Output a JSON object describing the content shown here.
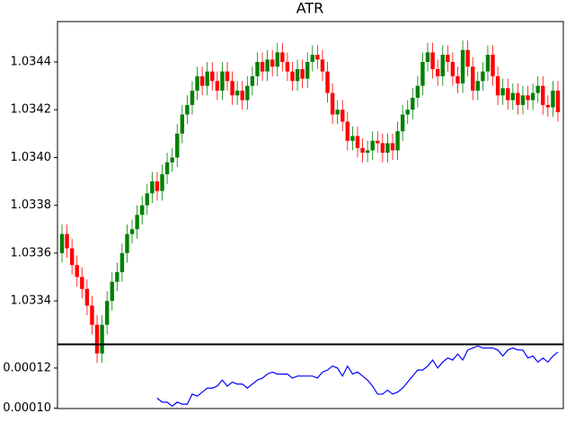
{
  "chart_data": [
    {
      "type": "candlestick",
      "title": "ATR",
      "open": [
        1.0336,
        1.03368,
        1.03362,
        1.03355,
        1.0335,
        1.03345,
        1.03338,
        1.0333,
        1.03318,
        1.0333,
        1.0334,
        1.03348,
        1.03352,
        1.0336,
        1.03368,
        1.0337,
        1.03376,
        1.0338,
        1.03385,
        1.0339,
        1.03386,
        1.03393,
        1.03398,
        1.034,
        1.0341,
        1.03418,
        1.03422,
        1.03428,
        1.03434,
        1.0343,
        1.03436,
        1.03432,
        1.03428,
        1.03436,
        1.03432,
        1.03426,
        1.03428,
        1.03424,
        1.0343,
        1.03434,
        1.0344,
        1.03436,
        1.03441,
        1.03438,
        1.03444,
        1.0344,
        1.03436,
        1.03432,
        1.03437,
        1.03433,
        1.0344,
        1.03443,
        1.03441,
        1.03436,
        1.03427,
        1.03418,
        1.0342,
        1.03415,
        1.03407,
        1.03409,
        1.03404,
        1.03402,
        1.03403,
        1.03407,
        1.03406,
        1.03402,
        1.03406,
        1.03403,
        1.03411,
        1.03418,
        1.0342,
        1.03425,
        1.0343,
        1.0344,
        1.03444,
        1.03437,
        1.03434,
        1.03443,
        1.0344,
        1.03434,
        1.03431,
        1.03445,
        1.03438,
        1.03428,
        1.03432,
        1.03436,
        1.03443,
        1.03434,
        1.03426,
        1.03429,
        1.03424,
        1.03427,
        1.03422,
        1.03426,
        1.03424,
        1.03427,
        1.0343,
        1.03422,
        1.03421,
        1.03428
      ],
      "high": [
        1.03372,
        1.03372,
        1.03366,
        1.03359,
        1.03354,
        1.03349,
        1.03342,
        1.03334,
        1.03334,
        1.03344,
        1.03352,
        1.03356,
        1.03364,
        1.03372,
        1.03374,
        1.0338,
        1.03384,
        1.03389,
        1.03394,
        1.03394,
        1.03397,
        1.03402,
        1.03404,
        1.03414,
        1.03422,
        1.03426,
        1.03432,
        1.03438,
        1.03438,
        1.0344,
        1.0344,
        1.03436,
        1.0344,
        1.0344,
        1.03436,
        1.03432,
        1.03432,
        1.03434,
        1.03438,
        1.03444,
        1.03444,
        1.03445,
        1.03445,
        1.03448,
        1.03448,
        1.03444,
        1.0344,
        1.03441,
        1.03441,
        1.03444,
        1.03447,
        1.03447,
        1.03445,
        1.0344,
        1.03431,
        1.03424,
        1.03424,
        1.03419,
        1.03413,
        1.03413,
        1.03408,
        1.03407,
        1.03411,
        1.03411,
        1.0341,
        1.0341,
        1.0341,
        1.03415,
        1.03422,
        1.03424,
        1.03429,
        1.03434,
        1.03444,
        1.03448,
        1.03448,
        1.03441,
        1.03447,
        1.03447,
        1.03444,
        1.03438,
        1.03449,
        1.03449,
        1.03442,
        1.03436,
        1.0344,
        1.03447,
        1.03447,
        1.03438,
        1.03433,
        1.03433,
        1.03431,
        1.03431,
        1.0343,
        1.0343,
        1.03431,
        1.03434,
        1.03434,
        1.03426,
        1.03432,
        1.03432
      ],
      "low": [
        1.03356,
        1.03358,
        1.03351,
        1.03346,
        1.03341,
        1.03334,
        1.03326,
        1.03314,
        1.03314,
        1.03326,
        1.03336,
        1.03344,
        1.03348,
        1.03356,
        1.03364,
        1.03366,
        1.03372,
        1.03376,
        1.03381,
        1.03382,
        1.03382,
        1.03389,
        1.03394,
        1.03396,
        1.03406,
        1.03414,
        1.03418,
        1.03424,
        1.03426,
        1.03426,
        1.03428,
        1.03424,
        1.03424,
        1.03428,
        1.03422,
        1.03422,
        1.0342,
        1.0342,
        1.03426,
        1.0343,
        1.03432,
        1.03432,
        1.03434,
        1.03434,
        1.03436,
        1.03432,
        1.03428,
        1.03428,
        1.03429,
        1.03429,
        1.03436,
        1.03437,
        1.03432,
        1.03423,
        1.03414,
        1.03414,
        1.03411,
        1.03403,
        1.03403,
        1.034,
        1.03398,
        1.03398,
        1.03399,
        1.03402,
        1.03398,
        1.03398,
        1.03399,
        1.03399,
        1.03407,
        1.03414,
        1.03416,
        1.03421,
        1.03426,
        1.03436,
        1.03433,
        1.0343,
        1.0343,
        1.03436,
        1.0343,
        1.03427,
        1.03427,
        1.03434,
        1.03424,
        1.03424,
        1.03428,
        1.03432,
        1.0343,
        1.03422,
        1.03422,
        1.0342,
        1.0342,
        1.03418,
        1.03418,
        1.0342,
        1.0342,
        1.03423,
        1.03418,
        1.03417,
        1.03417,
        1.03415
      ],
      "close": [
        1.03368,
        1.03362,
        1.03355,
        1.0335,
        1.03345,
        1.03338,
        1.0333,
        1.03318,
        1.0333,
        1.0334,
        1.03348,
        1.03352,
        1.0336,
        1.03368,
        1.0337,
        1.03376,
        1.0338,
        1.03385,
        1.0339,
        1.03386,
        1.03393,
        1.03398,
        1.034,
        1.0341,
        1.03418,
        1.03422,
        1.03428,
        1.03434,
        1.0343,
        1.03436,
        1.03432,
        1.03428,
        1.03436,
        1.03432,
        1.03426,
        1.03428,
        1.03424,
        1.0343,
        1.03434,
        1.0344,
        1.03436,
        1.03441,
        1.03438,
        1.03444,
        1.0344,
        1.03436,
        1.03432,
        1.03437,
        1.03433,
        1.0344,
        1.03443,
        1.03441,
        1.03436,
        1.03427,
        1.03418,
        1.0342,
        1.03415,
        1.03407,
        1.03409,
        1.03404,
        1.03402,
        1.03403,
        1.03407,
        1.03406,
        1.03402,
        1.03406,
        1.03403,
        1.03411,
        1.03418,
        1.0342,
        1.03425,
        1.0343,
        1.0344,
        1.03444,
        1.03437,
        1.03434,
        1.03443,
        1.0344,
        1.03434,
        1.03431,
        1.03445,
        1.03438,
        1.03428,
        1.03432,
        1.03436,
        1.03443,
        1.03434,
        1.03426,
        1.03429,
        1.03424,
        1.03427,
        1.03422,
        1.03426,
        1.03424,
        1.03427,
        1.0343,
        1.03422,
        1.03421,
        1.03428,
        1.03419
      ],
      "up_color": "#008000",
      "down_color": "#ff0000",
      "ylim": [
        1.03322,
        1.034569
      ],
      "yticks": [
        1.0334,
        1.0336,
        1.0338,
        {
          "value": 1.034,
          "label": "1.0340"
        },
        1.0342,
        1.0344
      ]
    },
    {
      "type": "line",
      "color": "#0000ff",
      "values": [
        null,
        null,
        null,
        null,
        null,
        null,
        null,
        null,
        null,
        null,
        null,
        null,
        null,
        null,
        null,
        null,
        null,
        null,
        null,
        0.000105,
        0.000103,
        0.000103,
        0.000101,
        0.000103,
        0.000102,
        0.000102,
        0.000107,
        0.000106,
        0.000108,
        0.00011,
        0.00011,
        0.000111,
        0.000114,
        0.000111,
        0.000113,
        0.000112,
        0.000112,
        0.00011,
        0.000112,
        0.000114,
        0.000115,
        0.000117,
        0.000118,
        0.000117,
        0.000117,
        0.000117,
        0.000115,
        0.000116,
        0.000116,
        0.000116,
        0.000116,
        0.000115,
        0.000118,
        0.000119,
        0.000121,
        0.00012,
        0.000116,
        0.000121,
        0.000117,
        0.000118,
        0.000116,
        0.000114,
        0.000111,
        0.000107,
        0.000107,
        0.000109,
        0.000107,
        0.000108,
        0.00011,
        0.000113,
        0.000116,
        0.000119,
        0.000119,
        0.000121,
        0.000124,
        0.00012,
        0.000123,
        0.000125,
        0.000124,
        0.000127,
        0.000124,
        0.000129,
        0.00013,
        0.000131,
        0.00013,
        0.00013,
        0.00013,
        0.000129,
        0.000126,
        0.000129,
        0.00013,
        0.000129,
        0.000129,
        0.000125,
        0.000126,
        0.000123,
        0.000125,
        0.000123,
        0.000126,
        0.000128
      ],
      "ylim": [
        9.98e-05,
        0.0001316
      ],
      "yticks": [
        {
          "value": 0.0001,
          "label": "0.00010"
        },
        0.00012
      ]
    }
  ]
}
